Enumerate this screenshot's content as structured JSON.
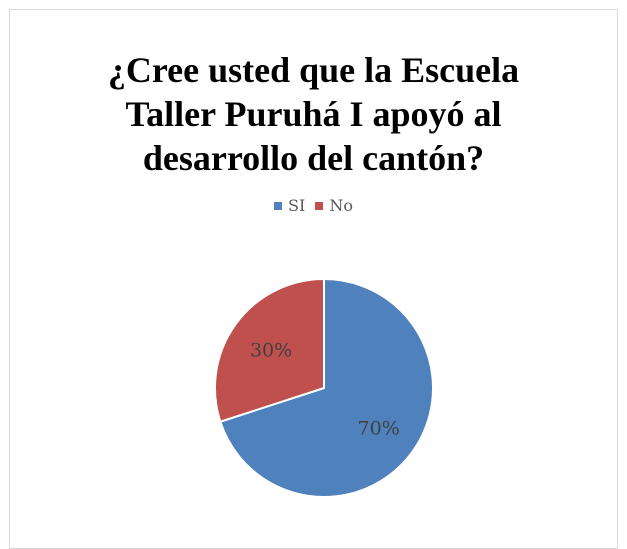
{
  "chart_data": {
    "type": "pie",
    "title": "¿Cree usted que la Escuela Taller Puruhá I apoyó al desarrollo del cantón?",
    "title_lines": [
      "¿Cree usted que la Escuela",
      "Taller Puruhá I apoyó al",
      "desarrollo del cantón?"
    ],
    "categories": [
      "SI",
      "No"
    ],
    "values": [
      70,
      30
    ],
    "data_labels": [
      "70%",
      "30%"
    ],
    "colors": [
      "#4f81bd",
      "#c0504d"
    ],
    "legend_position": "top"
  }
}
